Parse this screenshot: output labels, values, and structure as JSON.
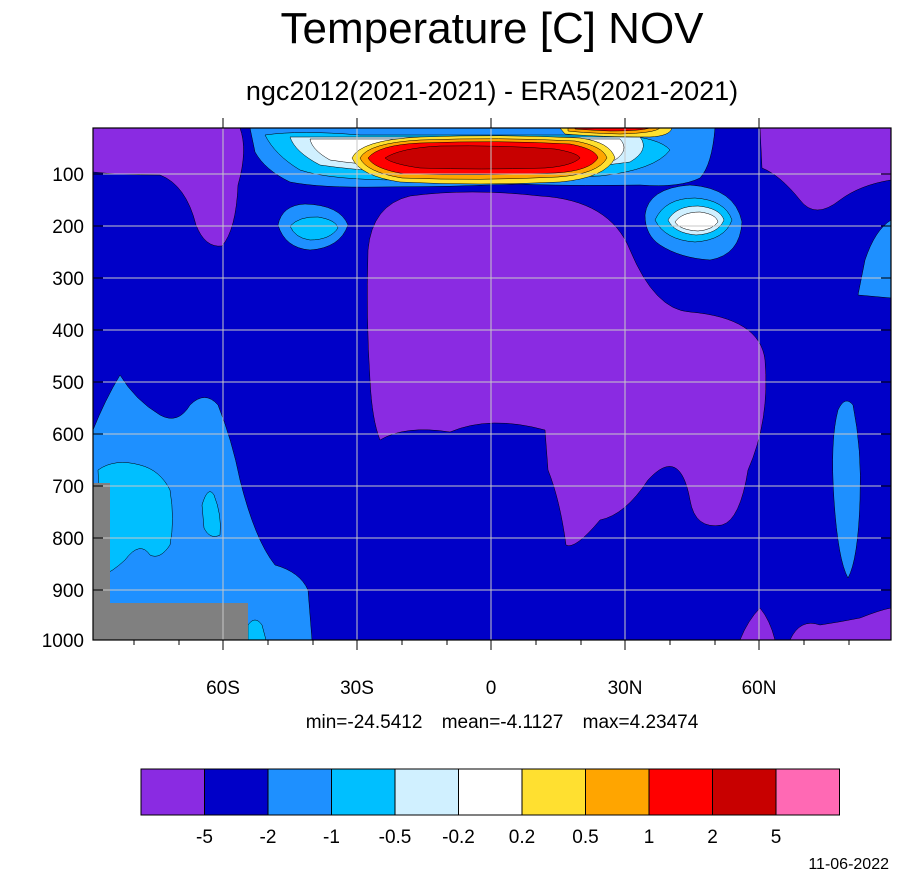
{
  "title": "Temperature [C] NOV",
  "subtitle": "ngc2012(2021-2021) - ERA5(2021-2021)",
  "stats": {
    "min": "min=-24.5412",
    "mean": "mean=-4.1127",
    "max": "max=4.23474"
  },
  "date": "11-06-2022",
  "chart_data": {
    "type": "heatmap",
    "y_ticks": [
      "100",
      "200",
      "300",
      "400",
      "500",
      "600",
      "700",
      "800",
      "900",
      "1000"
    ],
    "x_ticks": [
      "60S",
      "30S",
      "0",
      "30N",
      "60N"
    ],
    "missing_color": "#808080",
    "background_color": "#0000c8",
    "colorbar": {
      "colors": [
        "#8a2be2",
        "#0000c8",
        "#1e90ff",
        "#00bfff",
        "#d0f0ff",
        "#ffffff",
        "#ffe030",
        "#ffa500",
        "#ff0000",
        "#c80000",
        "#ff69b4"
      ],
      "levels": [
        "-5",
        "-2",
        "-1",
        "-0.5",
        "-0.2",
        "0.2",
        "0.5",
        "1",
        "2",
        "5"
      ]
    },
    "grid": true
  }
}
